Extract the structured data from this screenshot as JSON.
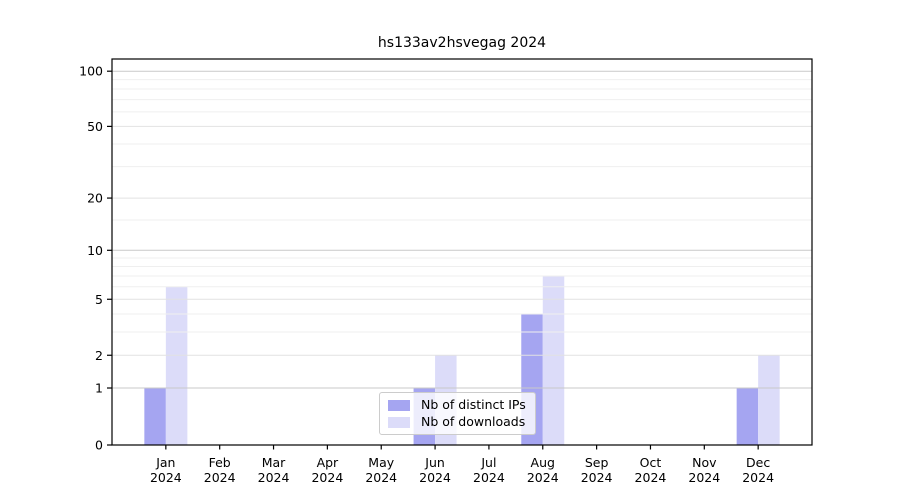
{
  "chart_data": {
    "type": "bar",
    "title": "hs133av2hsvegag 2024",
    "categories": [
      "Jan 2024",
      "Feb 2024",
      "Mar 2024",
      "Apr 2024",
      "May 2024",
      "Jun 2024",
      "Jul 2024",
      "Aug 2024",
      "Sep 2024",
      "Oct 2024",
      "Nov 2024",
      "Dec 2024"
    ],
    "x_tick_line1": [
      "Jan",
      "Feb",
      "Mar",
      "Apr",
      "May",
      "Jun",
      "Jul",
      "Aug",
      "Sep",
      "Oct",
      "Nov",
      "Dec"
    ],
    "x_tick_line2": "2024",
    "series": [
      {
        "name": "Nb of distinct IPs",
        "color": "#a5a5f1",
        "values": [
          1,
          0,
          0,
          0,
          0,
          1,
          0,
          4,
          0,
          0,
          0,
          1
        ]
      },
      {
        "name": "Nb of downloads",
        "color": "#dcdcf9",
        "values": [
          6,
          0,
          0,
          0,
          0,
          2,
          0,
          7,
          0,
          0,
          0,
          2
        ]
      }
    ],
    "y_ticks": [
      0,
      1,
      2,
      5,
      10,
      20,
      50,
      100
    ],
    "y_tick_labels": [
      "0",
      "1",
      "2",
      "5",
      "10",
      "20",
      "50",
      "100"
    ],
    "y_scale": "log10(value+1)",
    "ylim": [
      0,
      115
    ],
    "xlabel": "",
    "ylabel": "",
    "grid": true,
    "legend_position": "lower center",
    "colors": {
      "axis": "#000000",
      "grid_major": "#c9c9c9",
      "grid_minor": "#efefef",
      "grid_labeled": "#e2e2e2",
      "background": "#ffffff"
    }
  }
}
